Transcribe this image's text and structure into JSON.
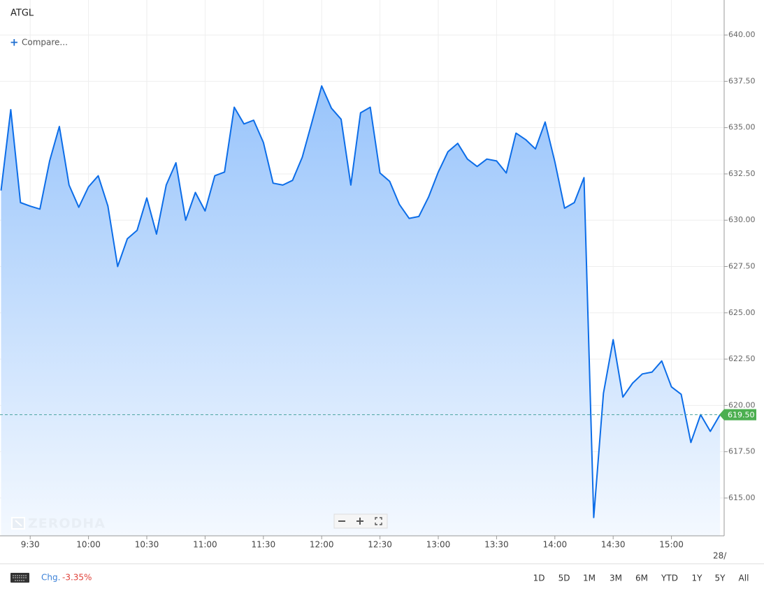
{
  "header": {
    "symbol": "ATGL",
    "compare": "Compare..."
  },
  "chart_data": {
    "type": "area",
    "categories": [
      null,
      null,
      null,
      "9:30",
      null,
      null,
      null,
      null,
      null,
      "10:00",
      null,
      null,
      null,
      null,
      null,
      "10:30",
      null,
      null,
      null,
      null,
      null,
      "11:00",
      null,
      null,
      null,
      null,
      null,
      "11:30",
      null,
      null,
      null,
      null,
      null,
      "12:00",
      null,
      null,
      null,
      null,
      null,
      "12:30",
      null,
      null,
      null,
      null,
      null,
      "13:00",
      null,
      null,
      null,
      null,
      null,
      "13:30",
      null,
      null,
      null,
      null,
      null,
      "14:00",
      null,
      null,
      null,
      null,
      null,
      "14:30",
      null,
      null,
      null,
      null,
      null,
      "15:00",
      null,
      null,
      null,
      null,
      null
    ],
    "values": [
      631.6,
      635.97,
      630.95,
      630.76,
      630.6,
      633.2,
      635.06,
      631.9,
      630.7,
      631.8,
      632.4,
      630.76,
      627.5,
      629.0,
      629.45,
      631.2,
      629.25,
      631.9,
      633.1,
      630.0,
      631.5,
      630.5,
      632.4,
      632.6,
      636.1,
      635.2,
      635.4,
      634.2,
      632.0,
      631.9,
      632.15,
      633.4,
      635.3,
      637.25,
      636.05,
      635.45,
      631.9,
      635.8,
      636.1,
      632.55,
      632.1,
      630.85,
      630.1,
      630.2,
      631.25,
      632.6,
      633.7,
      634.15,
      633.3,
      632.9,
      633.3,
      633.2,
      632.55,
      634.7,
      634.35,
      633.85,
      635.3,
      633.15,
      630.65,
      630.95,
      632.3,
      613.95,
      620.65,
      623.55,
      620.45,
      621.2,
      621.7,
      621.8,
      622.4,
      621.0,
      620.6,
      618.0,
      619.5,
      618.6,
      619.5
    ],
    "color": "#0c6de8",
    "ylim": [
      612.96,
      641.89
    ],
    "yticks": [
      {
        "value": 615,
        "label": "615.00"
      },
      {
        "value": 617.5,
        "label": "617.50"
      },
      {
        "value": 620,
        "label": "620.00"
      },
      {
        "value": 622.5,
        "label": "622.50"
      },
      {
        "value": 625,
        "label": "625.00"
      },
      {
        "value": 627.5,
        "label": "627.50"
      },
      {
        "value": 630,
        "label": "630.00"
      },
      {
        "value": 632.5,
        "label": "632.50"
      },
      {
        "value": 635,
        "label": "635.00"
      },
      {
        "value": 637.5,
        "label": "637.50"
      },
      {
        "value": 640,
        "label": "640.00"
      }
    ],
    "grid": true,
    "last_price": {
      "value": 619.5,
      "label": "619.50"
    },
    "watermark": "ZERODHA",
    "date_label": "28/"
  },
  "footer": {
    "change_label": "Chg.",
    "change_value": "-3.35%",
    "ranges": [
      "1D",
      "5D",
      "1M",
      "3M",
      "6M",
      "YTD",
      "1Y",
      "5Y",
      "All"
    ]
  }
}
